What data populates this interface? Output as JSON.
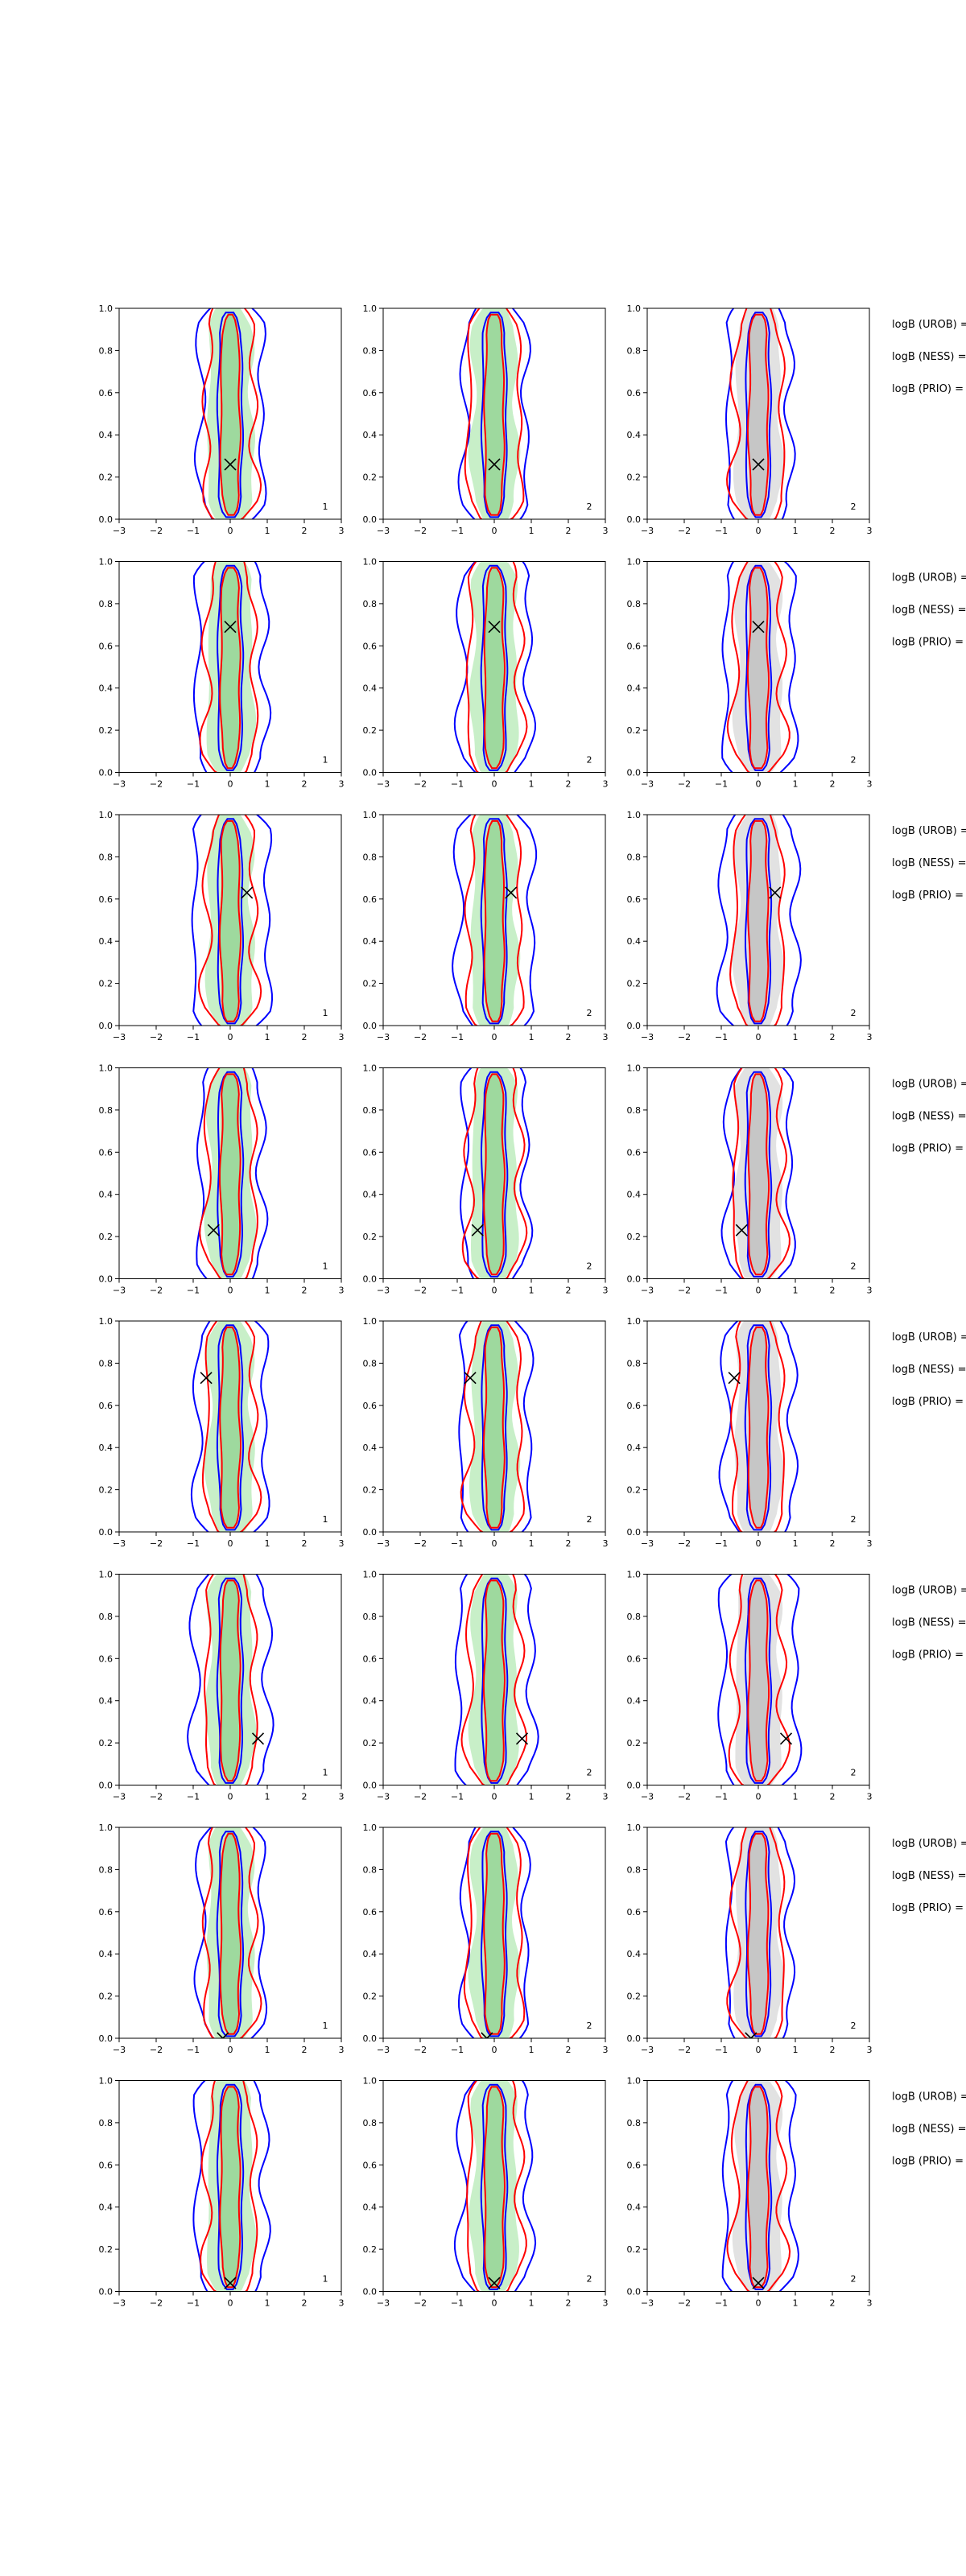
{
  "chart_data": {
    "type": "contour",
    "grid": false,
    "xlim": [
      -3,
      3
    ],
    "ylim": [
      0.0,
      1.0
    ],
    "xticks": [
      "−3",
      "−2",
      "−1",
      "0",
      "1",
      "2",
      "3"
    ],
    "yticks": [
      "0.0",
      "0.2",
      "0.4",
      "0.6",
      "0.8",
      "1.0"
    ],
    "column_tags": [
      "1",
      "2",
      "2"
    ],
    "fills": {
      "green": "#c8efc8",
      "green_core": "#9ed99e",
      "grey": "#e2e2e2",
      "grey_core": "#c6c6c6"
    },
    "colors": {
      "blue": "#0000ff",
      "red": "#ff0000",
      "marker": "#000000"
    },
    "legend_lines": [
      "logB (UROB) =",
      "logB (NESS) =",
      "logB (PRIO) ="
    ],
    "rows": [
      {
        "marker": [
          0.0,
          0.26
        ]
      },
      {
        "marker": [
          0.0,
          0.69
        ]
      },
      {
        "marker": [
          0.45,
          0.63
        ]
      },
      {
        "marker": [
          -0.45,
          0.23
        ]
      },
      {
        "marker": [
          -0.65,
          0.73
        ]
      },
      {
        "marker": [
          0.75,
          0.22
        ]
      },
      {
        "marker": [
          -0.2,
          0.0
        ]
      },
      {
        "marker": [
          0.0,
          0.04
        ]
      }
    ]
  }
}
